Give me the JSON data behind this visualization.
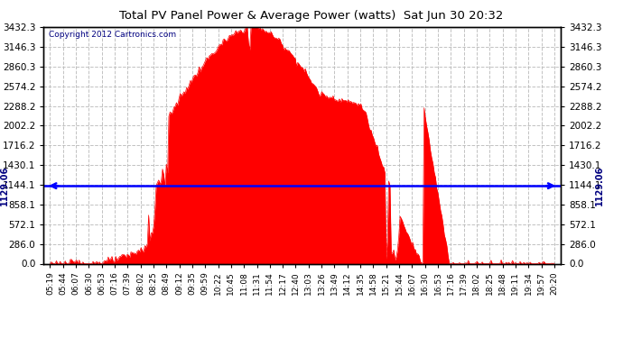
{
  "title": "Total PV Panel Power & Average Power (watts)  Sat Jun 30 20:32",
  "copyright": "Copyright 2012 Cartronics.com",
  "average_power": 1129.06,
  "y_max": 3432.3,
  "y_ticks": [
    0.0,
    286.0,
    572.1,
    858.1,
    1144.1,
    1430.1,
    1716.2,
    2002.2,
    2288.2,
    2574.2,
    2860.3,
    3146.3,
    3432.3
  ],
  "fill_color": "#FF0000",
  "avg_line_color": "#0000FF",
  "background_color": "#FFFFFF",
  "grid_color": "#BBBBBB",
  "x_labels": [
    "05:19",
    "05:44",
    "06:07",
    "06:30",
    "06:53",
    "07:16",
    "07:39",
    "08:02",
    "08:25",
    "08:49",
    "09:12",
    "09:35",
    "09:59",
    "10:22",
    "10:45",
    "11:08",
    "11:31",
    "11:54",
    "12:17",
    "12:40",
    "13:03",
    "13:26",
    "13:49",
    "14:12",
    "14:35",
    "14:58",
    "15:21",
    "15:44",
    "16:07",
    "16:30",
    "16:53",
    "17:16",
    "17:39",
    "18:02",
    "18:25",
    "18:48",
    "19:11",
    "19:34",
    "19:57",
    "20:20"
  ]
}
